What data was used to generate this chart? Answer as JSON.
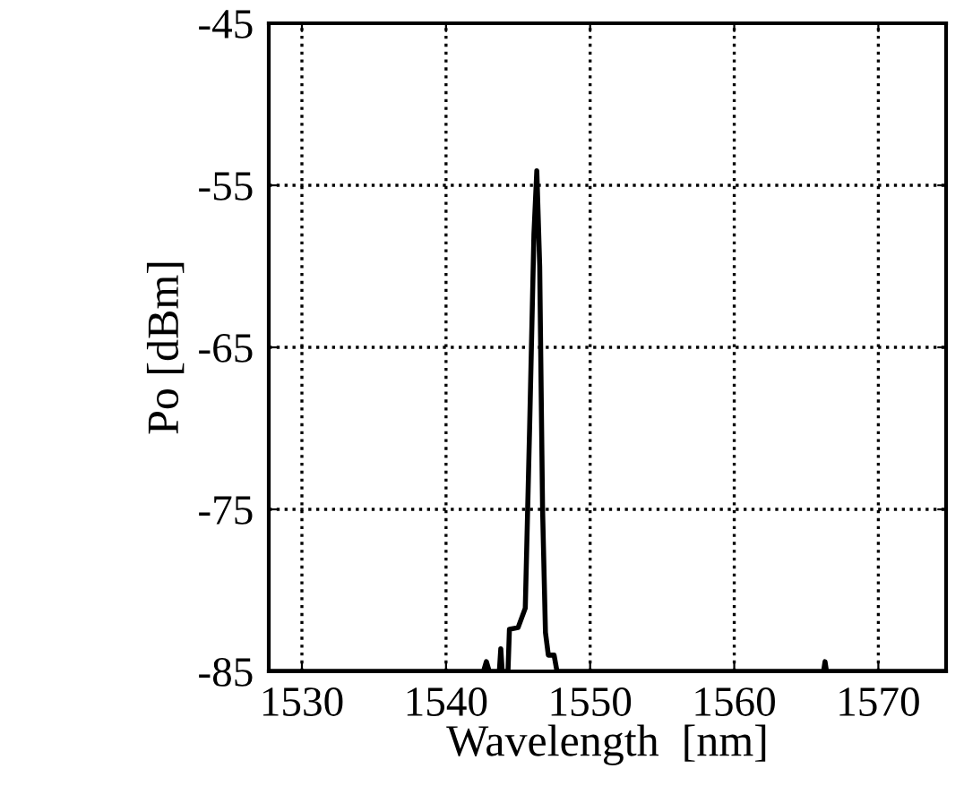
{
  "chart_data": {
    "type": "line",
    "xlabel": "Wavelength  [nm]",
    "ylabel": "Po [dBm]",
    "series": [
      {
        "color": "#000000",
        "x": [
          1527.7,
          1542.6,
          1542.8,
          1543.0,
          1543.7,
          1543.8,
          1543.9,
          1544.3,
          1544.4,
          1545.0,
          1545.5,
          1545.8,
          1546.1,
          1546.3,
          1546.5,
          1546.7,
          1546.9,
          1547.1,
          1547.5,
          1547.7,
          1566.2,
          1566.3,
          1566.4,
          1574.7
        ],
        "values": [
          -85,
          -85,
          -84.4,
          -85,
          -85,
          -83.6,
          -85,
          -85,
          -82.4,
          -82.3,
          -81.1,
          -70,
          -58,
          -54.1,
          -60,
          -75,
          -82.6,
          -84,
          -84,
          -85,
          -85,
          -84.4,
          -85,
          -85
        ]
      }
    ],
    "xlim": [
      1527.7,
      1574.7
    ],
    "xticks": [
      1530,
      1540,
      1550,
      1560,
      1570
    ],
    "ylim": [
      -85,
      -45
    ],
    "yticks": [
      -85,
      -75,
      -65,
      -55,
      -45
    ],
    "grid": true,
    "line_style": "solid"
  }
}
